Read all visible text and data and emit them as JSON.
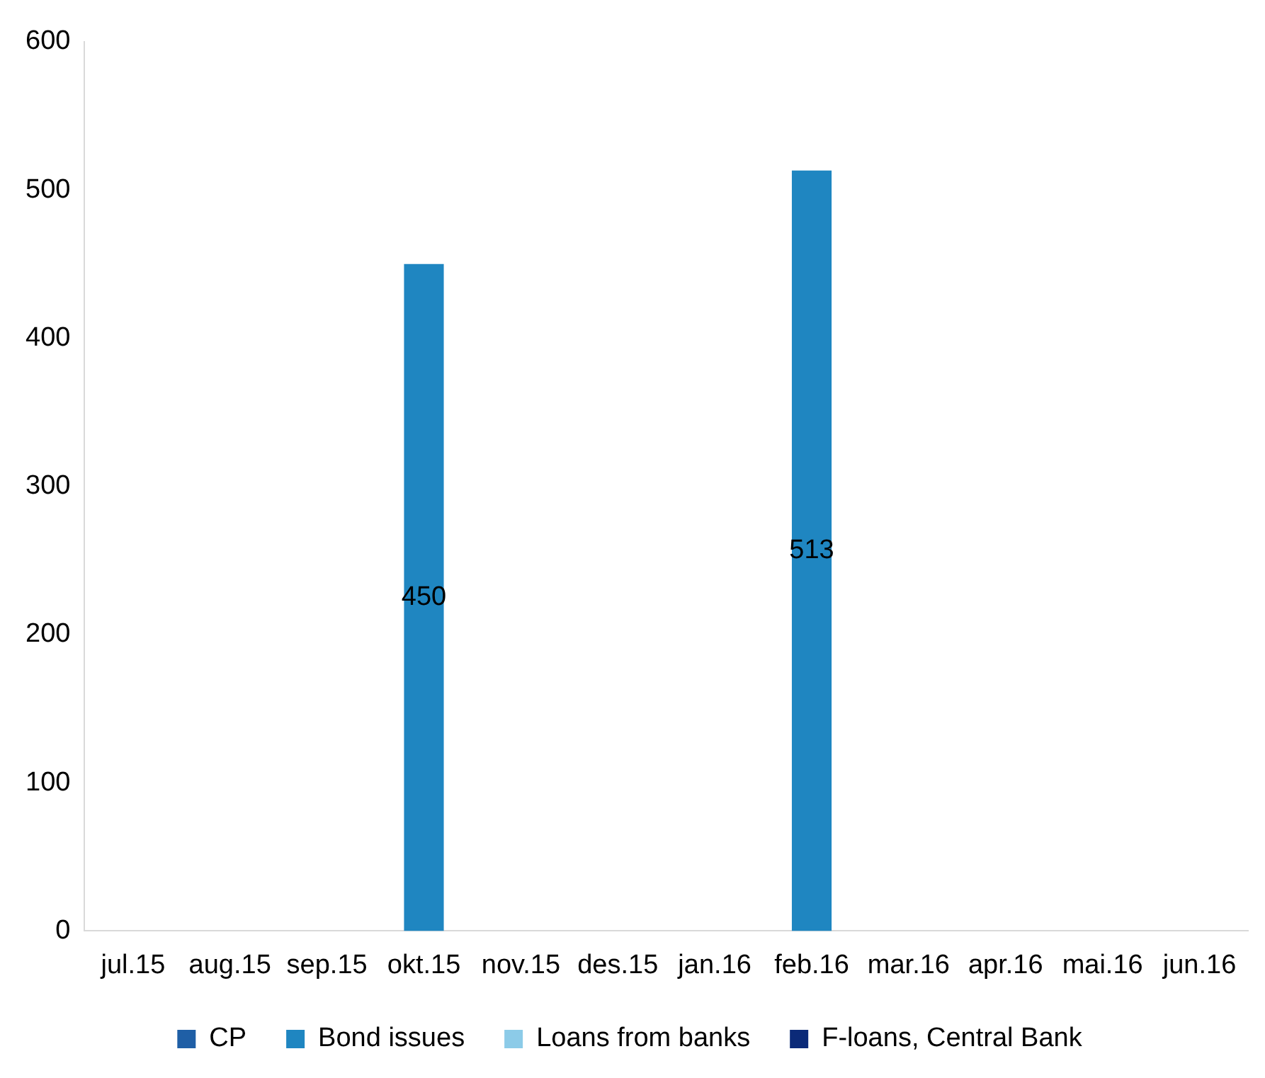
{
  "chart_data": {
    "type": "bar",
    "stacked": true,
    "categories": [
      "jul.15",
      "aug.15",
      "sep.15",
      "okt.15",
      "nov.15",
      "des.15",
      "jan.16",
      "feb.16",
      "mar.16",
      "apr.16",
      "mai.16",
      "jun.16"
    ],
    "series": [
      {
        "name": "CP",
        "color": "#1f5fa6",
        "values": [
          null,
          null,
          null,
          null,
          null,
          null,
          null,
          null,
          null,
          null,
          null,
          null
        ]
      },
      {
        "name": "Bond issues",
        "color": "#1f86c1",
        "values": [
          null,
          null,
          null,
          450,
          null,
          null,
          null,
          513,
          null,
          null,
          null,
          null
        ],
        "value_labels": [
          null,
          null,
          null,
          "450",
          null,
          null,
          null,
          "513",
          null,
          null,
          null,
          null
        ]
      },
      {
        "name": "Loans from banks",
        "color": "#8ccbe8",
        "values": [
          null,
          null,
          null,
          null,
          null,
          null,
          null,
          null,
          null,
          null,
          null,
          null
        ]
      },
      {
        "name": "F-loans, Central Bank",
        "color": "#0b2a78",
        "values": [
          null,
          null,
          null,
          null,
          null,
          null,
          null,
          null,
          null,
          null,
          null,
          null
        ]
      }
    ],
    "ylim": [
      0,
      600
    ],
    "yticks": [
      0,
      100,
      200,
      300,
      400,
      500,
      600
    ],
    "grid": false,
    "legend": "bottom"
  }
}
